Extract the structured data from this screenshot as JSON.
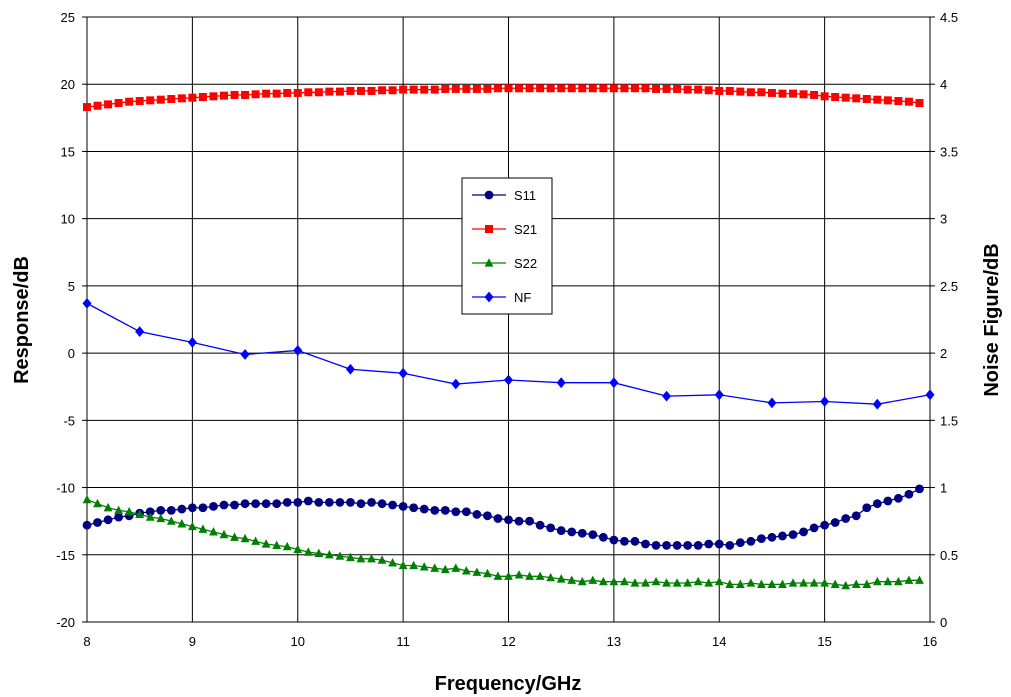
{
  "chart_data": {
    "type": "line",
    "xlabel": "Frequency/GHz",
    "ylabel": "Response/dB",
    "y2label": "Noise Figure/dB",
    "xlim": [
      8,
      16
    ],
    "ylim": [
      -20,
      25
    ],
    "y2lim": [
      0,
      4.5
    ],
    "x_ticks": [
      "8",
      "9",
      "10",
      "11",
      "12",
      "13",
      "14",
      "15",
      "16"
    ],
    "y_ticks": [
      "-20",
      "-15",
      "-10",
      "-5",
      "0",
      "5",
      "10",
      "15",
      "20",
      "25"
    ],
    "y2_ticks": [
      "0",
      "0.5",
      "1",
      "1.5",
      "2",
      "2.5",
      "3",
      "3.5",
      "4",
      "4.5"
    ],
    "grid": true,
    "legend_position": "center",
    "series": [
      {
        "name": "S11",
        "axis": "left",
        "color": "#000080",
        "marker": "circle",
        "x": [
          8.0,
          8.1,
          8.2,
          8.3,
          8.4,
          8.5,
          8.6,
          8.7,
          8.8,
          8.9,
          9.0,
          9.1,
          9.2,
          9.3,
          9.4,
          9.5,
          9.6,
          9.7,
          9.8,
          9.9,
          10.0,
          10.1,
          10.2,
          10.3,
          10.4,
          10.5,
          10.6,
          10.7,
          10.8,
          10.9,
          11.0,
          11.1,
          11.2,
          11.3,
          11.4,
          11.5,
          11.6,
          11.7,
          11.8,
          11.9,
          12.0,
          12.1,
          12.2,
          12.3,
          12.4,
          12.5,
          12.6,
          12.7,
          12.8,
          12.9,
          13.0,
          13.1,
          13.2,
          13.3,
          13.4,
          13.5,
          13.6,
          13.7,
          13.8,
          13.9,
          14.0,
          14.1,
          14.2,
          14.3,
          14.4,
          14.5,
          14.6,
          14.7,
          14.8,
          14.9,
          15.0,
          15.1,
          15.2,
          15.3,
          15.4,
          15.5,
          15.6,
          15.7,
          15.8,
          15.9
        ],
        "values": [
          -12.8,
          -12.6,
          -12.4,
          -12.2,
          -12.1,
          -11.9,
          -11.8,
          -11.7,
          -11.7,
          -11.6,
          -11.5,
          -11.5,
          -11.4,
          -11.3,
          -11.3,
          -11.2,
          -11.2,
          -11.2,
          -11.2,
          -11.1,
          -11.1,
          -11.0,
          -11.1,
          -11.1,
          -11.1,
          -11.1,
          -11.2,
          -11.1,
          -11.2,
          -11.3,
          -11.4,
          -11.5,
          -11.6,
          -11.7,
          -11.7,
          -11.8,
          -11.8,
          -12.0,
          -12.1,
          -12.3,
          -12.4,
          -12.5,
          -12.5,
          -12.8,
          -13.0,
          -13.2,
          -13.3,
          -13.4,
          -13.5,
          -13.7,
          -13.9,
          -14.0,
          -14.0,
          -14.2,
          -14.3,
          -14.3,
          -14.3,
          -14.3,
          -14.3,
          -14.2,
          -14.2,
          -14.3,
          -14.1,
          -14.0,
          -13.8,
          -13.7,
          -13.6,
          -13.5,
          -13.3,
          -13.0,
          -12.8,
          -12.6,
          -12.3,
          -12.1,
          -11.5,
          -11.2,
          -11.0,
          -10.8,
          -10.5,
          -10.1
        ]
      },
      {
        "name": "S21",
        "axis": "left",
        "color": "#ff0000",
        "marker": "square",
        "x": [
          8.0,
          8.1,
          8.2,
          8.3,
          8.4,
          8.5,
          8.6,
          8.7,
          8.8,
          8.9,
          9.0,
          9.1,
          9.2,
          9.3,
          9.4,
          9.5,
          9.6,
          9.7,
          9.8,
          9.9,
          10.0,
          10.1,
          10.2,
          10.3,
          10.4,
          10.5,
          10.6,
          10.7,
          10.8,
          10.9,
          11.0,
          11.1,
          11.2,
          11.3,
          11.4,
          11.5,
          11.6,
          11.7,
          11.8,
          11.9,
          12.0,
          12.1,
          12.2,
          12.3,
          12.4,
          12.5,
          12.6,
          12.7,
          12.8,
          12.9,
          13.0,
          13.1,
          13.2,
          13.3,
          13.4,
          13.5,
          13.6,
          13.7,
          13.8,
          13.9,
          14.0,
          14.1,
          14.2,
          14.3,
          14.4,
          14.5,
          14.6,
          14.7,
          14.8,
          14.9,
          15.0,
          15.1,
          15.2,
          15.3,
          15.4,
          15.5,
          15.6,
          15.7,
          15.8,
          15.9
        ],
        "values": [
          18.3,
          18.4,
          18.5,
          18.6,
          18.7,
          18.75,
          18.8,
          18.85,
          18.9,
          18.95,
          19.0,
          19.05,
          19.1,
          19.15,
          19.2,
          19.2,
          19.25,
          19.3,
          19.3,
          19.35,
          19.35,
          19.4,
          19.4,
          19.45,
          19.45,
          19.5,
          19.5,
          19.5,
          19.55,
          19.55,
          19.6,
          19.6,
          19.6,
          19.6,
          19.65,
          19.65,
          19.65,
          19.65,
          19.65,
          19.7,
          19.7,
          19.7,
          19.7,
          19.7,
          19.7,
          19.7,
          19.7,
          19.7,
          19.7,
          19.7,
          19.7,
          19.7,
          19.7,
          19.7,
          19.65,
          19.65,
          19.65,
          19.6,
          19.6,
          19.55,
          19.5,
          19.5,
          19.45,
          19.4,
          19.4,
          19.35,
          19.3,
          19.3,
          19.25,
          19.2,
          19.1,
          19.05,
          19.0,
          18.95,
          18.9,
          18.85,
          18.8,
          18.75,
          18.7,
          18.6
        ]
      },
      {
        "name": "S22",
        "axis": "left",
        "color": "#008000",
        "marker": "triangle",
        "x": [
          8.0,
          8.1,
          8.2,
          8.3,
          8.4,
          8.5,
          8.6,
          8.7,
          8.8,
          8.9,
          9.0,
          9.1,
          9.2,
          9.3,
          9.4,
          9.5,
          9.6,
          9.7,
          9.8,
          9.9,
          10.0,
          10.1,
          10.2,
          10.3,
          10.4,
          10.5,
          10.6,
          10.7,
          10.8,
          10.9,
          11.0,
          11.1,
          11.2,
          11.3,
          11.4,
          11.5,
          11.6,
          11.7,
          11.8,
          11.9,
          12.0,
          12.1,
          12.2,
          12.3,
          12.4,
          12.5,
          12.6,
          12.7,
          12.8,
          12.9,
          13.0,
          13.1,
          13.2,
          13.3,
          13.4,
          13.5,
          13.6,
          13.7,
          13.8,
          13.9,
          14.0,
          14.1,
          14.2,
          14.3,
          14.4,
          14.5,
          14.6,
          14.7,
          14.8,
          14.9,
          15.0,
          15.1,
          15.2,
          15.3,
          15.4,
          15.5,
          15.6,
          15.7,
          15.8,
          15.9
        ],
        "values": [
          -10.9,
          -11.2,
          -11.5,
          -11.7,
          -11.8,
          -12.0,
          -12.2,
          -12.3,
          -12.5,
          -12.7,
          -12.9,
          -13.1,
          -13.3,
          -13.5,
          -13.7,
          -13.8,
          -14.0,
          -14.2,
          -14.3,
          -14.4,
          -14.6,
          -14.8,
          -14.9,
          -15.0,
          -15.1,
          -15.2,
          -15.3,
          -15.3,
          -15.4,
          -15.6,
          -15.8,
          -15.8,
          -15.9,
          -16.0,
          -16.1,
          -16.0,
          -16.2,
          -16.3,
          -16.4,
          -16.6,
          -16.6,
          -16.5,
          -16.6,
          -16.6,
          -16.7,
          -16.8,
          -16.9,
          -17.0,
          -16.9,
          -17.0,
          -17.0,
          -17.0,
          -17.1,
          -17.1,
          -17.0,
          -17.1,
          -17.1,
          -17.1,
          -17.0,
          -17.1,
          -17.0,
          -17.2,
          -17.2,
          -17.1,
          -17.2,
          -17.2,
          -17.2,
          -17.1,
          -17.1,
          -17.1,
          -17.1,
          -17.2,
          -17.3,
          -17.2,
          -17.2,
          -17.0,
          -17.0,
          -17.0,
          -16.9,
          -16.9
        ]
      },
      {
        "name": "NF",
        "axis": "right",
        "color": "#0000ff",
        "marker": "diamond",
        "x": [
          8.0,
          8.5,
          9.0,
          9.5,
          10.0,
          10.5,
          11.0,
          11.5,
          12.0,
          12.5,
          13.0,
          13.5,
          14.0,
          14.5,
          15.0,
          15.5,
          16.0
        ],
        "values": [
          2.37,
          2.16,
          2.08,
          1.99,
          2.02,
          1.88,
          1.85,
          1.77,
          1.8,
          1.78,
          1.78,
          1.68,
          1.69,
          1.63,
          1.64,
          1.62,
          1.69
        ]
      }
    ]
  }
}
